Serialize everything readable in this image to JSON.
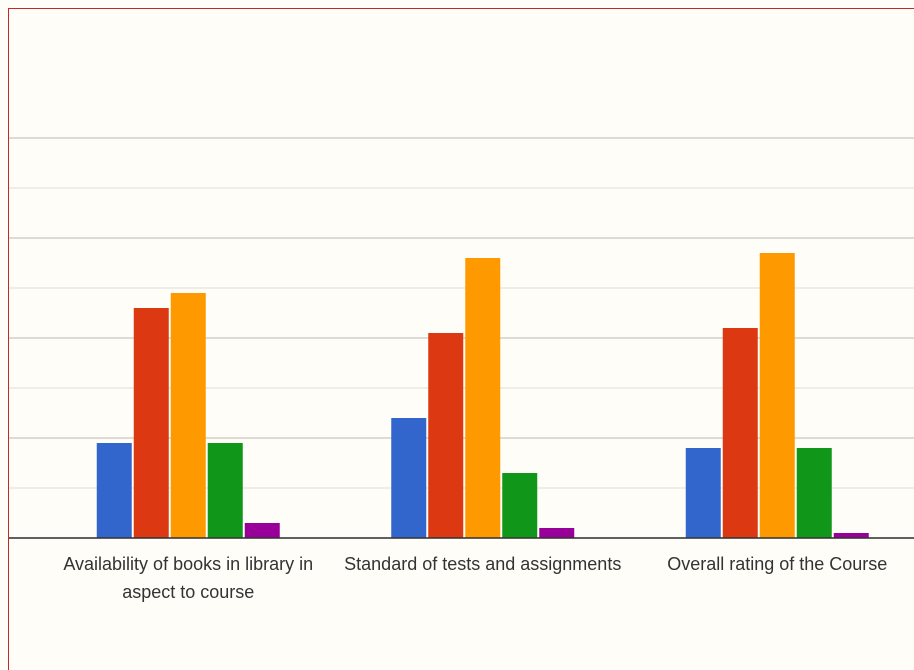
{
  "chart_data": {
    "type": "bar",
    "categories": [
      "Availability of books in library in aspect to course",
      "Standard of tests and assignments",
      "Overall rating of the Course"
    ],
    "series": [
      {
        "color": "#3366cc",
        "values": [
          1.9,
          2.4,
          1.8
        ]
      },
      {
        "color": "#dc3912",
        "values": [
          4.6,
          4.1,
          4.2
        ]
      },
      {
        "color": "#ff9900",
        "values": [
          4.9,
          5.6,
          5.7
        ]
      },
      {
        "color": "#109618",
        "values": [
          1.9,
          1.3,
          1.8
        ]
      },
      {
        "color": "#990099",
        "values": [
          0.3,
          0.2,
          0.1
        ]
      }
    ],
    "ylim": [
      0,
      8
    ],
    "yticks": [
      0,
      1,
      2,
      3,
      4,
      5,
      6,
      7,
      8
    ],
    "grid": true
  }
}
